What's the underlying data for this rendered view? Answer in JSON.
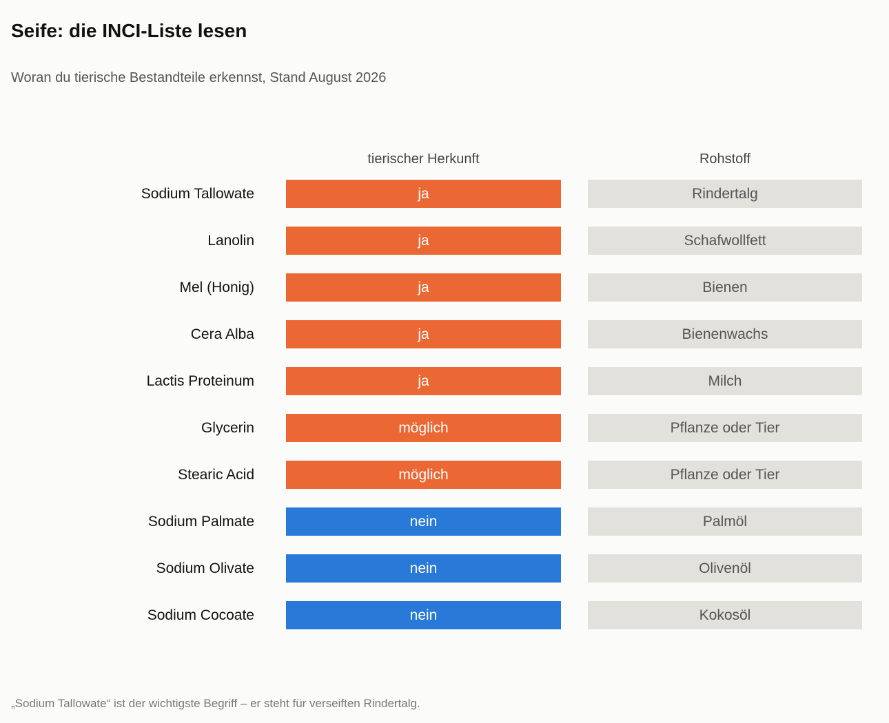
{
  "title": "Seife: die INCI-Liste lesen",
  "subtitle": "Woran du tierische Bestandteile erkennst, Stand August 2026",
  "footnote": "„Sodium Tallowate“ ist der wichtigste Begriff – er steht für verseiften Rindertalg.",
  "colors": {
    "ja": "#eb6835",
    "möglich": "#eb6835",
    "nein": "#2979d8",
    "material_bg": "#e2e1dc"
  },
  "chart_data": {
    "type": "table",
    "columns": [
      "tierischer Herkunft",
      "Rohstoff"
    ],
    "rows": [
      {
        "ingredient": "Sodium Tallowate",
        "origin": "ja",
        "material": "Rindertalg"
      },
      {
        "ingredient": "Lanolin",
        "origin": "ja",
        "material": "Schafwollfett"
      },
      {
        "ingredient": "Mel (Honig)",
        "origin": "ja",
        "material": "Bienen"
      },
      {
        "ingredient": "Cera Alba",
        "origin": "ja",
        "material": "Bienenwachs"
      },
      {
        "ingredient": "Lactis Proteinum",
        "origin": "ja",
        "material": "Milch"
      },
      {
        "ingredient": "Glycerin",
        "origin": "möglich",
        "material": "Pflanze oder Tier"
      },
      {
        "ingredient": "Stearic Acid",
        "origin": "möglich",
        "material": "Pflanze oder Tier"
      },
      {
        "ingredient": "Sodium Palmate",
        "origin": "nein",
        "material": "Palmöl"
      },
      {
        "ingredient": "Sodium Olivate",
        "origin": "nein",
        "material": "Olivenöl"
      },
      {
        "ingredient": "Sodium Cocoate",
        "origin": "nein",
        "material": "Kokosöl"
      }
    ]
  }
}
